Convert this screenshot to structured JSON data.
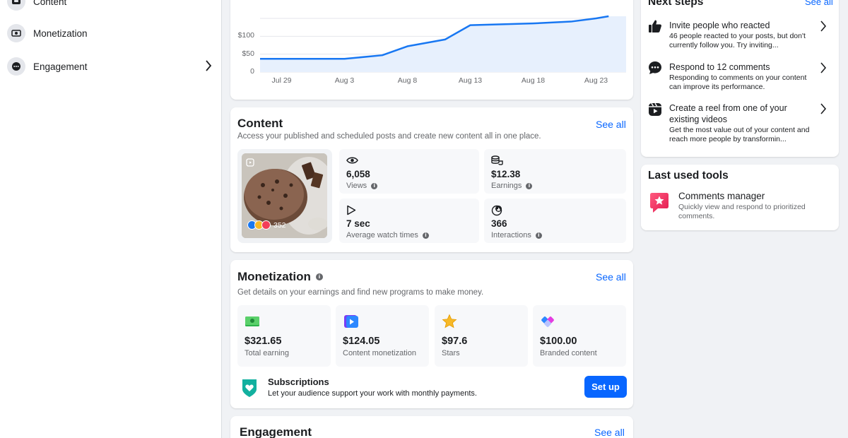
{
  "sidebar": {
    "items": [
      {
        "label": "Content",
        "icon": "content-icon"
      },
      {
        "label": "Monetization",
        "icon": "monetization-icon"
      },
      {
        "label": "Engagement",
        "icon": "engagement-icon"
      }
    ]
  },
  "chart_data": {
    "type": "area",
    "x": [
      "Jul 29",
      "Aug 1",
      "Aug 3",
      "Aug 6",
      "Aug 8",
      "Aug 11",
      "Aug 13",
      "Aug 18",
      "Aug 21",
      "Aug 23",
      "Aug 24"
    ],
    "values": [
      37,
      37,
      37,
      47,
      72,
      91,
      131,
      136,
      141,
      150,
      156
    ],
    "x_ticks": [
      "Jul 29",
      "Aug 3",
      "Aug 8",
      "Aug 13",
      "Aug 18",
      "Aug 23"
    ],
    "y_ticks": [
      "0",
      "$50",
      "$100"
    ],
    "ylim": [
      0,
      150
    ],
    "grid": true,
    "line_color": "#1877f2",
    "fill_color": "#e7f0fd"
  },
  "content": {
    "title": "Content",
    "subtitle": "Access your published and scheduled posts and create new content all in one place.",
    "see_all": "See all",
    "reactions_count": "352",
    "stats": [
      {
        "value": "6,058",
        "caption": "Views",
        "icon": "eye-icon"
      },
      {
        "value": "$12.38",
        "caption": "Earnings",
        "icon": "coins-icon"
      },
      {
        "value": "7 sec",
        "caption": "Average watch times",
        "icon": "play-icon"
      },
      {
        "value": "366",
        "caption": "Interactions",
        "icon": "thumb-up-icon"
      }
    ]
  },
  "monetization": {
    "title": "Monetization",
    "subtitle": "Get details on your earnings and find new programs to make money.",
    "see_all": "See all",
    "tiles": [
      {
        "value": "$321.65",
        "caption": "Total earning",
        "icon": "cash-icon"
      },
      {
        "value": "$124.05",
        "caption": "Content monetization",
        "icon": "video-play-icon"
      },
      {
        "value": "$97.6",
        "caption": "Stars",
        "icon": "star-icon"
      },
      {
        "value": "$100.00",
        "caption": "Branded content",
        "icon": "handshake-icon"
      }
    ],
    "subscriptions": {
      "title": "Subscriptions",
      "desc": "Let your audience support your work with monthly payments.",
      "button": "Set up"
    }
  },
  "engagement": {
    "title": "Engagement",
    "see_all": "See all"
  },
  "next_steps": {
    "title": "Next steps",
    "see_all": "See all",
    "items": [
      {
        "title": "Invite people who reacted",
        "desc": "46 people reacted to your posts, but don't currently follow you. Try inviting...",
        "icon": "thumbs-up-icon"
      },
      {
        "title": "Respond to 12 comments",
        "desc": "Responding to comments on your content can improve its performance.",
        "icon": "comment-icon"
      },
      {
        "title": "Create a reel from one of your existing videos",
        "desc": "Get the most value out of your content and reach more people by transformin...",
        "icon": "reel-icon"
      }
    ]
  },
  "last_used_tools": {
    "title": "Last used tools",
    "items": [
      {
        "title": "Comments manager",
        "desc": "Quickly view and respond to prioritized comments.",
        "icon": "comments-manager-icon"
      }
    ]
  },
  "colors": {
    "accent": "#0866ff",
    "background": "#f0f2f5",
    "card": "#ffffff"
  }
}
